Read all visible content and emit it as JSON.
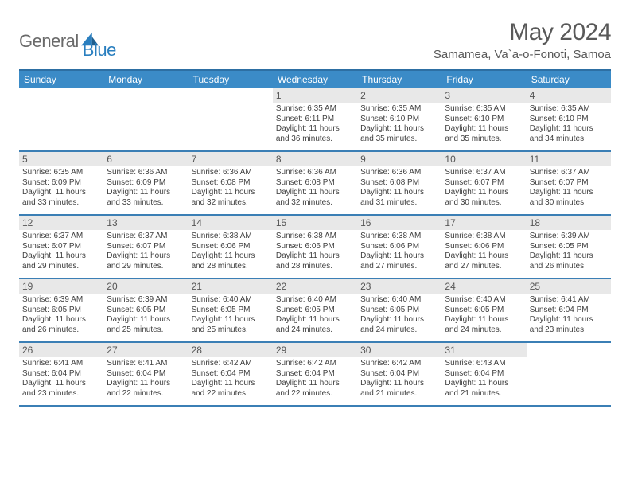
{
  "logo": {
    "text1": "General",
    "text2": "Blue"
  },
  "header": {
    "month_title": "May 2024",
    "location": "Samamea, Va`a-o-Fonoti, Samoa"
  },
  "colors": {
    "header_bg": "#3b8bc7",
    "header_border": "#2d6fa3",
    "week_border": "#3b7fb5",
    "daynum_bg": "#e8e8e8",
    "text_gray": "#595959",
    "logo_gray": "#6a6a6a",
    "logo_blue": "#2a7fbf"
  },
  "day_names": [
    "Sunday",
    "Monday",
    "Tuesday",
    "Wednesday",
    "Thursday",
    "Friday",
    "Saturday"
  ],
  "weeks": [
    [
      {
        "n": "",
        "empty": true
      },
      {
        "n": "",
        "empty": true
      },
      {
        "n": "",
        "empty": true
      },
      {
        "n": "1",
        "sr": "6:35 AM",
        "ss": "6:11 PM",
        "dl": "11 hours and 36 minutes."
      },
      {
        "n": "2",
        "sr": "6:35 AM",
        "ss": "6:10 PM",
        "dl": "11 hours and 35 minutes."
      },
      {
        "n": "3",
        "sr": "6:35 AM",
        "ss": "6:10 PM",
        "dl": "11 hours and 35 minutes."
      },
      {
        "n": "4",
        "sr": "6:35 AM",
        "ss": "6:10 PM",
        "dl": "11 hours and 34 minutes."
      }
    ],
    [
      {
        "n": "5",
        "sr": "6:35 AM",
        "ss": "6:09 PM",
        "dl": "11 hours and 33 minutes."
      },
      {
        "n": "6",
        "sr": "6:36 AM",
        "ss": "6:09 PM",
        "dl": "11 hours and 33 minutes."
      },
      {
        "n": "7",
        "sr": "6:36 AM",
        "ss": "6:08 PM",
        "dl": "11 hours and 32 minutes."
      },
      {
        "n": "8",
        "sr": "6:36 AM",
        "ss": "6:08 PM",
        "dl": "11 hours and 32 minutes."
      },
      {
        "n": "9",
        "sr": "6:36 AM",
        "ss": "6:08 PM",
        "dl": "11 hours and 31 minutes."
      },
      {
        "n": "10",
        "sr": "6:37 AM",
        "ss": "6:07 PM",
        "dl": "11 hours and 30 minutes."
      },
      {
        "n": "11",
        "sr": "6:37 AM",
        "ss": "6:07 PM",
        "dl": "11 hours and 30 minutes."
      }
    ],
    [
      {
        "n": "12",
        "sr": "6:37 AM",
        "ss": "6:07 PM",
        "dl": "11 hours and 29 minutes."
      },
      {
        "n": "13",
        "sr": "6:37 AM",
        "ss": "6:07 PM",
        "dl": "11 hours and 29 minutes."
      },
      {
        "n": "14",
        "sr": "6:38 AM",
        "ss": "6:06 PM",
        "dl": "11 hours and 28 minutes."
      },
      {
        "n": "15",
        "sr": "6:38 AM",
        "ss": "6:06 PM",
        "dl": "11 hours and 28 minutes."
      },
      {
        "n": "16",
        "sr": "6:38 AM",
        "ss": "6:06 PM",
        "dl": "11 hours and 27 minutes."
      },
      {
        "n": "17",
        "sr": "6:38 AM",
        "ss": "6:06 PM",
        "dl": "11 hours and 27 minutes."
      },
      {
        "n": "18",
        "sr": "6:39 AM",
        "ss": "6:05 PM",
        "dl": "11 hours and 26 minutes."
      }
    ],
    [
      {
        "n": "19",
        "sr": "6:39 AM",
        "ss": "6:05 PM",
        "dl": "11 hours and 26 minutes."
      },
      {
        "n": "20",
        "sr": "6:39 AM",
        "ss": "6:05 PM",
        "dl": "11 hours and 25 minutes."
      },
      {
        "n": "21",
        "sr": "6:40 AM",
        "ss": "6:05 PM",
        "dl": "11 hours and 25 minutes."
      },
      {
        "n": "22",
        "sr": "6:40 AM",
        "ss": "6:05 PM",
        "dl": "11 hours and 24 minutes."
      },
      {
        "n": "23",
        "sr": "6:40 AM",
        "ss": "6:05 PM",
        "dl": "11 hours and 24 minutes."
      },
      {
        "n": "24",
        "sr": "6:40 AM",
        "ss": "6:05 PM",
        "dl": "11 hours and 24 minutes."
      },
      {
        "n": "25",
        "sr": "6:41 AM",
        "ss": "6:04 PM",
        "dl": "11 hours and 23 minutes."
      }
    ],
    [
      {
        "n": "26",
        "sr": "6:41 AM",
        "ss": "6:04 PM",
        "dl": "11 hours and 23 minutes."
      },
      {
        "n": "27",
        "sr": "6:41 AM",
        "ss": "6:04 PM",
        "dl": "11 hours and 22 minutes."
      },
      {
        "n": "28",
        "sr": "6:42 AM",
        "ss": "6:04 PM",
        "dl": "11 hours and 22 minutes."
      },
      {
        "n": "29",
        "sr": "6:42 AM",
        "ss": "6:04 PM",
        "dl": "11 hours and 22 minutes."
      },
      {
        "n": "30",
        "sr": "6:42 AM",
        "ss": "6:04 PM",
        "dl": "11 hours and 21 minutes."
      },
      {
        "n": "31",
        "sr": "6:43 AM",
        "ss": "6:04 PM",
        "dl": "11 hours and 21 minutes."
      },
      {
        "n": "",
        "empty": true
      }
    ]
  ],
  "labels": {
    "sunrise": "Sunrise:",
    "sunset": "Sunset:",
    "daylight": "Daylight:"
  }
}
